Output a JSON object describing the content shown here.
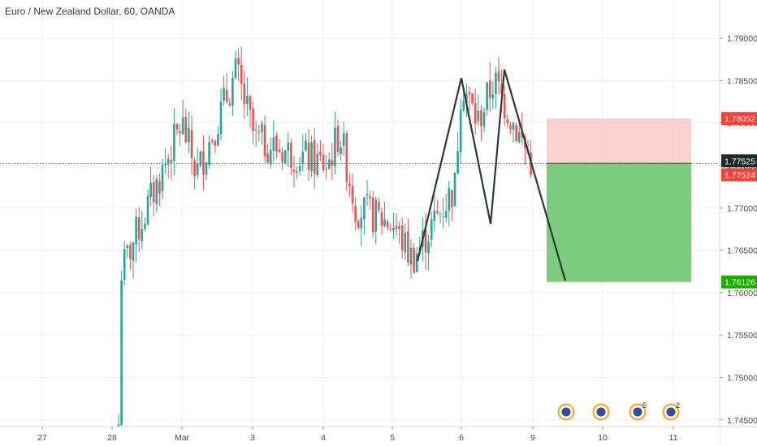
{
  "header": {
    "title": "Euro / New Zealand Dollar, 60, OANDA"
  },
  "colors": {
    "up": "#26a69a",
    "down": "#ef5350",
    "drawing": "#2b3a33",
    "current_line": "#e53935",
    "stop_zone": "#f7c1c1",
    "target_zone": "#76c877",
    "tag_red": "#f44336",
    "tag_dark": "#1e2a2a",
    "tag_green": "#1faa00"
  },
  "price_scale": {
    "labels": [
      "1.79000",
      "1.78500",
      "1.78000",
      "1.77500",
      "1.77000",
      "1.76500",
      "1.76000",
      "1.75500",
      "1.75000",
      "1.74500"
    ],
    "tags": {
      "stop": "1.78052",
      "entry": "1.77525",
      "current": "1.77524",
      "target": "1.76126"
    }
  },
  "time_scale": {
    "labels": [
      "27",
      "28",
      "Mar",
      "3",
      "4",
      "5",
      "6",
      "9",
      "10",
      "11"
    ]
  },
  "event_icons": [
    {
      "name": "event-flag-icon",
      "count": ""
    },
    {
      "name": "event-flag-icon",
      "count": ""
    },
    {
      "name": "event-flag-icon",
      "count": "5"
    },
    {
      "name": "event-flag-icon",
      "count": "2"
    }
  ],
  "chart_data": {
    "type": "candlestick",
    "title": "Euro / New Zealand Dollar, 60, OANDA",
    "symbol": "EURNZD",
    "interval": "60",
    "source": "OANDA",
    "ylim": [
      1.7445,
      1.7945
    ],
    "y_ticks": [
      1.79,
      1.785,
      1.78,
      1.775,
      1.77,
      1.765,
      1.76,
      1.755,
      1.75,
      1.745
    ],
    "x_ticks": [
      "27",
      "28",
      "Mar",
      "3",
      "4",
      "5",
      "6",
      "9",
      "10",
      "11"
    ],
    "current_price": 1.77524,
    "guide_points": [
      {
        "date": "28",
        "price": 1.7445
      },
      {
        "date": "28",
        "price": 1.762
      },
      {
        "date": "Mar",
        "price": 1.78
      },
      {
        "date": "Mar",
        "price": 1.774
      },
      {
        "date": "3",
        "price": 1.786
      },
      {
        "date": "3",
        "price": 1.778
      },
      {
        "date": "4",
        "price": 1.775
      },
      {
        "date": "4",
        "price": 1.779
      },
      {
        "date": "4",
        "price": 1.77
      },
      {
        "date": "5",
        "price": 1.768
      },
      {
        "date": "5",
        "price": 1.765
      },
      {
        "date": "5",
        "price": 1.764
      },
      {
        "date": "6",
        "price": 1.7725
      },
      {
        "date": "6",
        "price": 1.785
      },
      {
        "date": "6",
        "price": 1.78
      },
      {
        "date": "6",
        "price": 1.785
      },
      {
        "date": "9",
        "price": 1.7755
      }
    ],
    "pattern": {
      "type": "double-top",
      "points": [
        {
          "date": "5",
          "price": 1.7637
        },
        {
          "date": "6",
          "price": 1.7853
        },
        {
          "date": "6",
          "price": 1.7681
        },
        {
          "date": "6",
          "price": 1.7863
        },
        {
          "date": "9",
          "price": 1.7614
        }
      ]
    },
    "position": {
      "type": "short",
      "entry": 1.77525,
      "stop": 1.78052,
      "target": 1.76126
    }
  }
}
